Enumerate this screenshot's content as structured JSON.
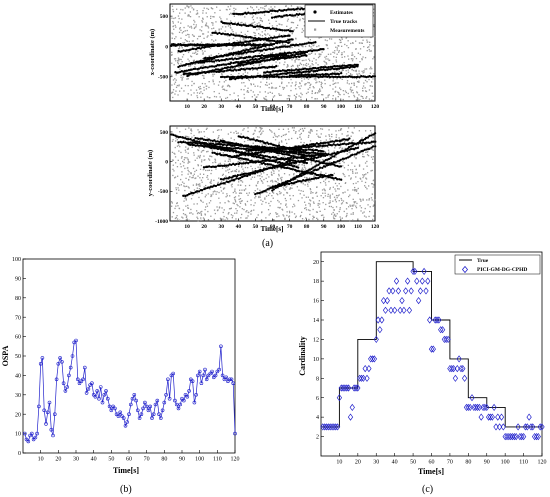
{
  "panel_labels": {
    "a": "(a)",
    "b": "(b)",
    "c": "(c)"
  },
  "colors": {
    "estimate": "#000000",
    "measurement": "#9a9a9a",
    "ospa": "#2222cc",
    "cardinality_est": "#2222cc",
    "true": "#000000"
  },
  "chart_data": [
    {
      "id": "a-top",
      "type": "scatter",
      "xlabel": "Time[s]",
      "ylabel": "x-coordinate (m)",
      "xlim": [
        0,
        120
      ],
      "ylim": [
        -900,
        700
      ],
      "x_ticks": [
        10,
        20,
        30,
        40,
        50,
        60,
        70,
        80,
        90,
        100,
        110,
        120
      ],
      "y_ticks": [
        500,
        0,
        -500
      ],
      "legend": {
        "placement": "top-right",
        "entries": [
          "Estimates",
          "True tracks",
          "Measurements"
        ]
      },
      "tracks": [
        {
          "start": [
            1,
            30
          ],
          "end": [
            52,
            20
          ]
        },
        {
          "start": [
            1,
            20
          ],
          "end": [
            60,
            30
          ]
        },
        {
          "start": [
            5,
            -80
          ],
          "end": [
            70,
            180
          ]
        },
        {
          "start": [
            5,
            -330
          ],
          "end": [
            72,
            120
          ]
        },
        {
          "start": [
            3,
            -430
          ],
          "end": [
            68,
            -130
          ]
        },
        {
          "start": [
            10,
            -480
          ],
          "end": [
            80,
            -100
          ]
        },
        {
          "start": [
            20,
            -200
          ],
          "end": [
            85,
            70
          ]
        },
        {
          "start": [
            12,
            -280
          ],
          "end": [
            90,
            -50
          ]
        },
        {
          "start": [
            8,
            -460
          ],
          "end": [
            62,
            -330
          ]
        },
        {
          "start": [
            30,
            400
          ],
          "end": [
            72,
            250
          ]
        },
        {
          "start": [
            25,
            230
          ],
          "end": [
            70,
            60
          ]
        },
        {
          "start": [
            40,
            -280
          ],
          "end": [
            80,
            -150
          ]
        },
        {
          "start": [
            30,
            -500
          ],
          "end": [
            120,
            -500
          ]
        },
        {
          "start": [
            37,
            530
          ],
          "end": [
            90,
            650
          ]
        },
        {
          "start": [
            60,
            480
          ],
          "end": [
            115,
            650
          ]
        },
        {
          "start": [
            35,
            -540
          ],
          "end": [
            110,
            -330
          ]
        },
        {
          "start": [
            55,
            -430
          ],
          "end": [
            110,
            -300
          ]
        },
        {
          "start": [
            70,
            -480
          ],
          "end": [
            100,
            -450
          ]
        }
      ]
    },
    {
      "id": "a-bottom",
      "type": "scatter",
      "xlabel": "Time[s]",
      "ylabel": "y-coordinate (m)",
      "xlim": [
        0,
        120
      ],
      "ylim": [
        -1000,
        600
      ],
      "x_ticks": [
        10,
        20,
        30,
        40,
        50,
        60,
        70,
        80,
        90,
        100,
        110,
        120
      ],
      "y_ticks": [
        500,
        0,
        -500,
        -1000
      ],
      "tracks": [
        {
          "start": [
            1,
            450
          ],
          "end": [
            75,
            -100
          ]
        },
        {
          "start": [
            5,
            330
          ],
          "end": [
            90,
            180
          ]
        },
        {
          "start": [
            10,
            300
          ],
          "end": [
            80,
            -20
          ]
        },
        {
          "start": [
            15,
            400
          ],
          "end": [
            85,
            80
          ]
        },
        {
          "start": [
            20,
            260
          ],
          "end": [
            92,
            130
          ]
        },
        {
          "start": [
            25,
            150
          ],
          "end": [
            100,
            -300
          ]
        },
        {
          "start": [
            20,
            -100
          ],
          "end": [
            90,
            120
          ]
        },
        {
          "start": [
            30,
            -300
          ],
          "end": [
            110,
            230
          ]
        },
        {
          "start": [
            8,
            -580
          ],
          "end": [
            70,
            0
          ]
        },
        {
          "start": [
            40,
            430
          ],
          "end": [
            80,
            150
          ]
        },
        {
          "start": [
            30,
            350
          ],
          "end": [
            100,
            -80
          ]
        },
        {
          "start": [
            50,
            -550
          ],
          "end": [
            120,
            260
          ]
        },
        {
          "start": [
            60,
            -480
          ],
          "end": [
            120,
            480
          ]
        },
        {
          "start": [
            35,
            80
          ],
          "end": [
            105,
            380
          ]
        },
        {
          "start": [
            45,
            180
          ],
          "end": [
            120,
            330
          ]
        },
        {
          "start": [
            60,
            -430
          ],
          "end": [
            95,
            -220
          ]
        }
      ]
    },
    {
      "id": "b",
      "type": "line",
      "xlabel": "Time[s]",
      "ylabel": "OSPA",
      "xlim": [
        0,
        120
      ],
      "ylim": [
        0,
        100
      ],
      "x_ticks": [
        10,
        20,
        30,
        40,
        50,
        60,
        70,
        80,
        90,
        100,
        110,
        120
      ],
      "y_ticks": [
        0,
        10,
        20,
        30,
        40,
        50,
        60,
        70,
        80,
        90,
        100
      ],
      "series": [
        {
          "x": [
            1,
            2,
            3,
            4,
            5,
            6,
            7,
            8,
            9,
            10,
            11,
            12,
            13,
            14,
            15,
            16,
            17,
            18,
            19,
            20,
            21,
            22,
            23,
            24,
            25,
            26,
            27,
            28,
            29,
            30,
            31,
            32,
            33,
            34,
            35,
            36,
            37,
            38,
            39,
            40,
            41,
            42,
            43,
            44,
            45,
            46,
            47,
            48,
            49,
            50,
            51,
            52,
            53,
            54,
            55,
            56,
            57,
            58,
            59,
            60,
            61,
            62,
            63,
            64,
            65,
            66,
            67,
            68,
            69,
            70,
            71,
            72,
            73,
            74,
            75,
            76,
            77,
            78,
            79,
            80,
            81,
            82,
            83,
            84,
            85,
            86,
            87,
            88,
            89,
            90,
            91,
            92,
            93,
            94,
            95,
            96,
            97,
            98,
            99,
            100,
            101,
            102,
            103,
            104,
            105,
            106,
            107,
            108,
            109,
            110,
            111,
            112,
            113,
            114,
            115,
            116,
            117,
            118,
            119,
            120
          ],
          "values": [
            10,
            7,
            6,
            9,
            10,
            7,
            8,
            10,
            24,
            46,
            49,
            22,
            15,
            21,
            26,
            12,
            9,
            20,
            38,
            46,
            49,
            47,
            36,
            32,
            34,
            40,
            44,
            50,
            57,
            58,
            38,
            36,
            37,
            38,
            44,
            31,
            33,
            35,
            36,
            30,
            29,
            32,
            28,
            34,
            26,
            30,
            32,
            28,
            24,
            22,
            24,
            23,
            20,
            19,
            21,
            19,
            18,
            14,
            16,
            20,
            25,
            28,
            30,
            27,
            22,
            18,
            20,
            23,
            26,
            24,
            22,
            24,
            18,
            20,
            25,
            27,
            20,
            18,
            22,
            26,
            30,
            38,
            28,
            40,
            41,
            27,
            25,
            23,
            25,
            28,
            27,
            30,
            29,
            32,
            38,
            37,
            26,
            30,
            40,
            42,
            36,
            40,
            43,
            38,
            40,
            41,
            42,
            39,
            40,
            42,
            43,
            55,
            40,
            38,
            39,
            37,
            38,
            38,
            36,
            10
          ]
        }
      ]
    },
    {
      "id": "c",
      "type": "line",
      "xlabel": "Time[s]",
      "ylabel": "Cardinality",
      "xlim": [
        0,
        120
      ],
      "ylim": [
        0,
        21
      ],
      "x_ticks": [
        10,
        20,
        30,
        40,
        50,
        60,
        70,
        80,
        90,
        100,
        110,
        120
      ],
      "y_ticks": [
        2,
        4,
        6,
        8,
        10,
        12,
        14,
        16,
        18,
        20
      ],
      "legend": {
        "placement": "top-right",
        "entries": [
          "True",
          "PICI-GM-DG-CPHD"
        ]
      },
      "true_steps": [
        [
          0,
          3
        ],
        [
          10,
          7
        ],
        [
          20,
          12
        ],
        [
          30,
          20
        ],
        [
          50,
          19
        ],
        [
          60,
          14
        ],
        [
          70,
          10
        ],
        [
          80,
          6
        ],
        [
          90,
          5
        ],
        [
          100,
          3
        ],
        [
          120,
          3
        ]
      ],
      "estimates": {
        "x": [
          1,
          2,
          3,
          4,
          5,
          6,
          7,
          8,
          9,
          10,
          11,
          12,
          13,
          14,
          15,
          16,
          17,
          18,
          19,
          20,
          21,
          22,
          23,
          24,
          25,
          26,
          27,
          28,
          29,
          30,
          31,
          32,
          33,
          34,
          35,
          36,
          37,
          38,
          39,
          40,
          41,
          42,
          43,
          44,
          45,
          46,
          47,
          48,
          49,
          50,
          51,
          52,
          53,
          54,
          55,
          56,
          57,
          58,
          59,
          60,
          61,
          62,
          63,
          64,
          65,
          66,
          67,
          68,
          69,
          70,
          71,
          72,
          73,
          74,
          75,
          76,
          77,
          78,
          79,
          80,
          81,
          82,
          83,
          84,
          85,
          86,
          87,
          88,
          89,
          90,
          91,
          92,
          93,
          94,
          95,
          96,
          97,
          98,
          99,
          100,
          101,
          102,
          103,
          104,
          105,
          106,
          107,
          108,
          109,
          110,
          111,
          112,
          113,
          114,
          115,
          116,
          117,
          118,
          119,
          120
        ],
        "values": [
          3,
          3,
          3,
          3,
          3,
          3,
          3,
          3,
          3,
          6,
          7,
          7,
          7,
          7,
          7,
          4,
          5,
          7,
          7,
          7,
          8,
          8,
          8,
          9,
          8,
          9,
          10,
          10,
          10,
          12,
          14,
          13,
          14,
          16,
          15,
          16,
          17,
          15,
          17,
          15,
          18,
          17,
          15,
          16,
          15,
          17,
          18,
          15,
          17,
          19,
          19,
          18,
          16,
          17,
          18,
          19,
          17,
          18,
          14,
          11,
          11,
          14,
          14,
          14,
          13,
          13,
          12,
          12,
          12,
          9,
          9,
          9,
          8,
          9,
          10,
          9,
          9,
          8,
          5,
          5,
          5,
          6,
          5,
          5,
          5,
          5,
          4,
          5,
          5,
          5,
          4,
          4,
          4,
          5,
          3,
          4,
          3,
          4,
          3,
          2,
          2,
          2,
          2,
          2,
          2,
          2,
          3,
          2,
          2,
          2,
          3,
          3,
          4,
          3,
          3,
          2,
          2,
          2,
          3,
          3
        ]
      }
    }
  ]
}
